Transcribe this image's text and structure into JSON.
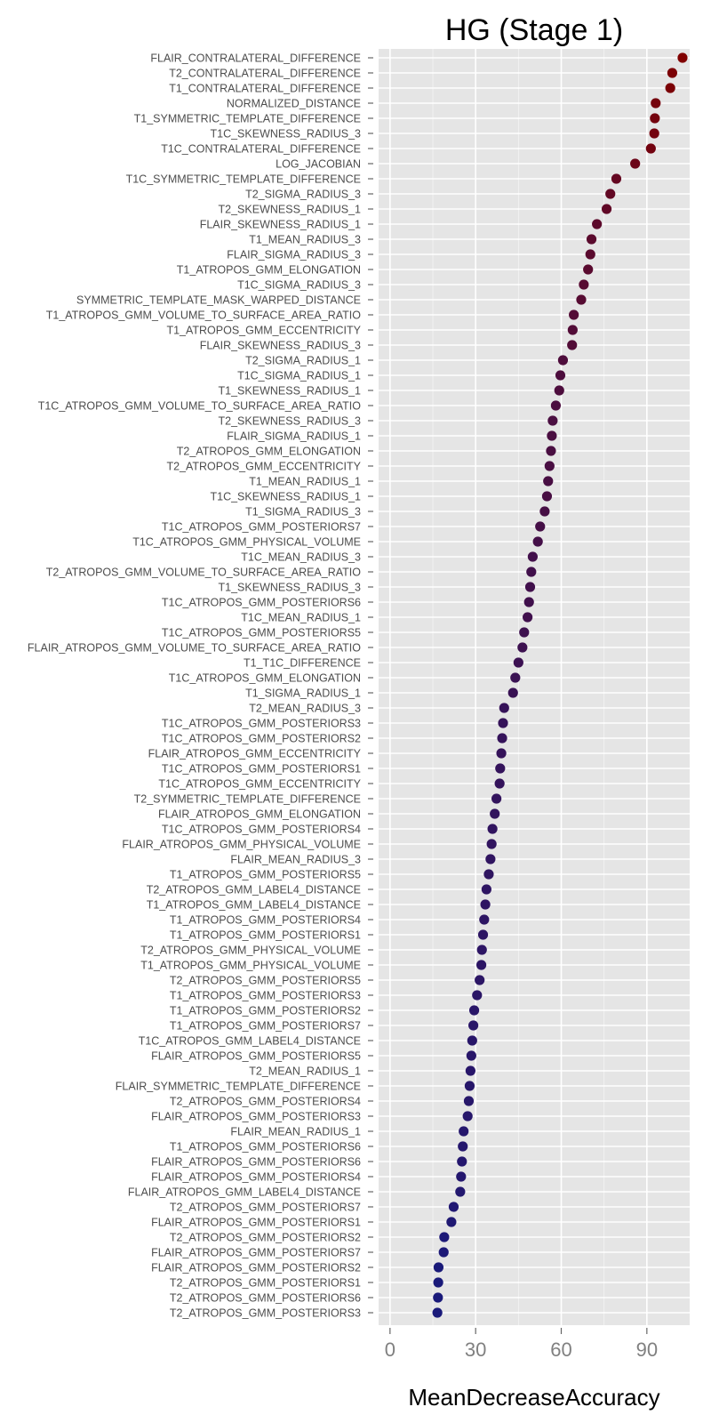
{
  "chart_data": {
    "type": "scatter",
    "title": "HG (Stage 1)",
    "xlabel": "MeanDecreaseAccuracy",
    "ylabel": "",
    "xlim": [
      -4,
      105
    ],
    "x_ticks": [
      0,
      30,
      60,
      90
    ],
    "x_tick_labels": [
      "0",
      "30",
      "60",
      "90"
    ],
    "grid": true,
    "legend": "none",
    "color_low": "#1a1a7a",
    "color_high": "#800000",
    "panel_background": "#e5e5e5",
    "grid_color": "#ffffff",
    "categories": [
      "FLAIR_CONTRALATERAL_DIFFERENCE",
      "T2_CONTRALATERAL_DIFFERENCE",
      "T1_CONTRALATERAL_DIFFERENCE",
      "NORMALIZED_DISTANCE",
      "T1_SYMMETRIC_TEMPLATE_DIFFERENCE",
      "T1C_SKEWNESS_RADIUS_3",
      "T1C_CONTRALATERAL_DIFFERENCE",
      "LOG_JACOBIAN",
      "T1C_SYMMETRIC_TEMPLATE_DIFFERENCE",
      "T2_SIGMA_RADIUS_3",
      "T2_SKEWNESS_RADIUS_1",
      "FLAIR_SKEWNESS_RADIUS_1",
      "T1_MEAN_RADIUS_3",
      "FLAIR_SIGMA_RADIUS_3",
      "T1_ATROPOS_GMM_ELONGATION",
      "T1C_SIGMA_RADIUS_3",
      "SYMMETRIC_TEMPLATE_MASK_WARPED_DISTANCE",
      "T1_ATROPOS_GMM_VOLUME_TO_SURFACE_AREA_RATIO",
      "T1_ATROPOS_GMM_ECCENTRICITY",
      "FLAIR_SKEWNESS_RADIUS_3",
      "T2_SIGMA_RADIUS_1",
      "T1C_SIGMA_RADIUS_1",
      "T1_SKEWNESS_RADIUS_1",
      "T1C_ATROPOS_GMM_VOLUME_TO_SURFACE_AREA_RATIO",
      "T2_SKEWNESS_RADIUS_3",
      "FLAIR_SIGMA_RADIUS_1",
      "T2_ATROPOS_GMM_ELONGATION",
      "T2_ATROPOS_GMM_ECCENTRICITY",
      "T1_MEAN_RADIUS_1",
      "T1C_SKEWNESS_RADIUS_1",
      "T1_SIGMA_RADIUS_3",
      "T1C_ATROPOS_GMM_POSTERIORS7",
      "T1C_ATROPOS_GMM_PHYSICAL_VOLUME",
      "T1C_MEAN_RADIUS_3",
      "T2_ATROPOS_GMM_VOLUME_TO_SURFACE_AREA_RATIO",
      "T1_SKEWNESS_RADIUS_3",
      "T1C_ATROPOS_GMM_POSTERIORS6",
      "T1C_MEAN_RADIUS_1",
      "T1C_ATROPOS_GMM_POSTERIORS5",
      "FLAIR_ATROPOS_GMM_VOLUME_TO_SURFACE_AREA_RATIO",
      "T1_T1C_DIFFERENCE",
      "T1C_ATROPOS_GMM_ELONGATION",
      "T1_SIGMA_RADIUS_1",
      "T2_MEAN_RADIUS_3",
      "T1C_ATROPOS_GMM_POSTERIORS3",
      "T1C_ATROPOS_GMM_POSTERIORS2",
      "FLAIR_ATROPOS_GMM_ECCENTRICITY",
      "T1C_ATROPOS_GMM_POSTERIORS1",
      "T1C_ATROPOS_GMM_ECCENTRICITY",
      "T2_SYMMETRIC_TEMPLATE_DIFFERENCE",
      "FLAIR_ATROPOS_GMM_ELONGATION",
      "T1C_ATROPOS_GMM_POSTERIORS4",
      "FLAIR_ATROPOS_GMM_PHYSICAL_VOLUME",
      "FLAIR_MEAN_RADIUS_3",
      "T1_ATROPOS_GMM_POSTERIORS5",
      "T2_ATROPOS_GMM_LABEL4_DISTANCE",
      "T1_ATROPOS_GMM_LABEL4_DISTANCE",
      "T1_ATROPOS_GMM_POSTERIORS4",
      "T1_ATROPOS_GMM_POSTERIORS1",
      "T2_ATROPOS_GMM_PHYSICAL_VOLUME",
      "T1_ATROPOS_GMM_PHYSICAL_VOLUME",
      "T2_ATROPOS_GMM_POSTERIORS5",
      "T1_ATROPOS_GMM_POSTERIORS3",
      "T1_ATROPOS_GMM_POSTERIORS2",
      "T1_ATROPOS_GMM_POSTERIORS7",
      "T1C_ATROPOS_GMM_LABEL4_DISTANCE",
      "FLAIR_ATROPOS_GMM_POSTERIORS5",
      "T2_MEAN_RADIUS_1",
      "FLAIR_SYMMETRIC_TEMPLATE_DIFFERENCE",
      "T2_ATROPOS_GMM_POSTERIORS4",
      "FLAIR_ATROPOS_GMM_POSTERIORS3",
      "FLAIR_MEAN_RADIUS_1",
      "T1_ATROPOS_GMM_POSTERIORS6",
      "FLAIR_ATROPOS_GMM_POSTERIORS6",
      "FLAIR_ATROPOS_GMM_POSTERIORS4",
      "FLAIR_ATROPOS_GMM_LABEL4_DISTANCE",
      "T2_ATROPOS_GMM_POSTERIORS7",
      "FLAIR_ATROPOS_GMM_POSTERIORS1",
      "T2_ATROPOS_GMM_POSTERIORS2",
      "FLAIR_ATROPOS_GMM_POSTERIORS7",
      "FLAIR_ATROPOS_GMM_POSTERIORS2",
      "T2_ATROPOS_GMM_POSTERIORS1",
      "T2_ATROPOS_GMM_POSTERIORS6",
      "T2_ATROPOS_GMM_POSTERIORS3"
    ],
    "values": [
      102.5,
      98.9,
      98.2,
      93.1,
      92.8,
      92.6,
      91.4,
      85.9,
      79.3,
      77.2,
      75.9,
      72.5,
      70.6,
      70.2,
      69.4,
      67.9,
      67.0,
      64.4,
      64.0,
      63.8,
      60.6,
      59.7,
      59.3,
      58.1,
      57.0,
      56.7,
      56.4,
      55.9,
      55.4,
      55.0,
      54.2,
      52.6,
      51.8,
      50.0,
      49.5,
      49.1,
      48.7,
      48.2,
      47.0,
      46.4,
      45.0,
      43.9,
      43.1,
      40.0,
      39.6,
      39.3,
      39.0,
      38.6,
      38.4,
      37.3,
      36.7,
      35.9,
      35.6,
      35.2,
      34.6,
      33.8,
      33.4,
      33.0,
      32.6,
      32.2,
      32.0,
      31.4,
      30.5,
      29.5,
      29.2,
      28.8,
      28.5,
      28.2,
      27.9,
      27.6,
      27.2,
      25.8,
      25.5,
      25.2,
      24.9,
      24.6,
      22.3,
      21.5,
      19.0,
      18.8,
      17.0,
      16.9,
      16.8,
      16.6
    ]
  }
}
